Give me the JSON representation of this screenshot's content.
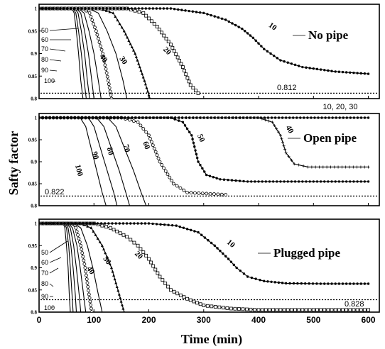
{
  "chart_data": {
    "type": "line",
    "xlabel": "Time (min)",
    "ylabel": "Safty factor",
    "xlim": [
      0,
      620
    ],
    "x_ticks": [
      0,
      100,
      200,
      300,
      400,
      500,
      600
    ],
    "ylim": [
      0.8,
      1.0
    ],
    "y_ticks": [
      "1",
      "0.95",
      "0.9",
      "0.85",
      "0.8"
    ],
    "panels": [
      {
        "title": "No pipe",
        "threshold": {
          "label": "0.812",
          "value": 0.812
        },
        "series_labels": [
          "100",
          "90",
          "80",
          "70",
          "60",
          "50",
          "40",
          "30",
          "20",
          "10"
        ],
        "series": [
          {
            "name": "100",
            "marker": "line",
            "x": [
              0,
              60,
              64,
              68,
              72,
              76,
              80
            ],
            "y": [
              1.0,
              1.0,
              0.99,
              0.95,
              0.9,
              0.84,
              0.8
            ]
          },
          {
            "name": "90",
            "marker": "line",
            "x": [
              0,
              62,
              67,
              72,
              77,
              82,
              86
            ],
            "y": [
              1.0,
              1.0,
              0.99,
              0.95,
              0.9,
              0.84,
              0.8
            ]
          },
          {
            "name": "80",
            "marker": "line",
            "x": [
              0,
              65,
              71,
              77,
              83,
              88,
              92
            ],
            "y": [
              1.0,
              1.0,
              0.99,
              0.95,
              0.9,
              0.84,
              0.8
            ]
          },
          {
            "name": "70",
            "marker": "line",
            "x": [
              0,
              68,
              76,
              83,
              90,
              96,
              100
            ],
            "y": [
              1.0,
              1.0,
              0.99,
              0.95,
              0.9,
              0.84,
              0.8
            ]
          },
          {
            "name": "60",
            "marker": "line",
            "x": [
              0,
              72,
              82,
              91,
              100,
              108,
              113
            ],
            "y": [
              1.0,
              1.0,
              0.99,
              0.95,
              0.9,
              0.84,
              0.8
            ]
          },
          {
            "name": "50",
            "marker": "circle",
            "x": [
              0,
              80,
              92,
              104,
              116,
              126,
              132
            ],
            "y": [
              1.0,
              1.0,
              0.99,
              0.95,
              0.9,
              0.84,
              0.8
            ]
          },
          {
            "name": "40",
            "marker": "line",
            "x": [
              0,
              90,
              108,
              124,
              140,
              153,
              160
            ],
            "y": [
              1.0,
              1.0,
              0.99,
              0.95,
              0.9,
              0.84,
              0.8
            ]
          },
          {
            "name": "30",
            "marker": "triangle",
            "x": [
              0,
              110,
              135,
              155,
              175,
              192,
              202
            ],
            "y": [
              1.0,
              1.0,
              0.99,
              0.95,
              0.9,
              0.84,
              0.8
            ]
          },
          {
            "name": "20",
            "marker": "square",
            "x": [
              0,
              160,
              190,
              215,
              240,
              262,
              276,
              290
            ],
            "y": [
              1.0,
              1.0,
              0.99,
              0.96,
              0.92,
              0.87,
              0.83,
              0.812
            ]
          },
          {
            "name": "10",
            "marker": "dot",
            "x": [
              0,
              240,
              300,
              340,
              370,
              390,
              410,
              440,
              480,
              540,
              600
            ],
            "y": [
              1.0,
              1.0,
              0.99,
              0.975,
              0.955,
              0.935,
              0.91,
              0.885,
              0.87,
              0.86,
              0.855
            ]
          }
        ]
      },
      {
        "title": "Open pipe",
        "threshold": {
          "label": "0.822",
          "value": 0.822
        },
        "series_labels": [
          "100",
          "90",
          "80",
          "70",
          "60",
          "50",
          "40",
          "10, 20, 30"
        ],
        "series": [
          {
            "name": "100",
            "marker": "line",
            "x": [
              0,
              75,
              85,
              95,
              105,
              115,
              122
            ],
            "y": [
              1.0,
              1.0,
              0.98,
              0.93,
              0.88,
              0.83,
              0.8
            ]
          },
          {
            "name": "90",
            "marker": "line",
            "x": [
              0,
              90,
              100,
              112,
              124,
              136,
              142
            ],
            "y": [
              1.0,
              1.0,
              0.98,
              0.93,
              0.88,
              0.83,
              0.8
            ]
          },
          {
            "name": "80",
            "marker": "line",
            "x": [
              0,
              105,
              118,
              132,
              146,
              158,
              165
            ],
            "y": [
              1.0,
              1.0,
              0.98,
              0.93,
              0.88,
              0.83,
              0.8
            ]
          },
          {
            "name": "70",
            "marker": "line",
            "x": [
              0,
              125,
              140,
              156,
              172,
              186,
              195
            ],
            "y": [
              1.0,
              1.0,
              0.98,
              0.93,
              0.88,
              0.83,
              0.8
            ]
          },
          {
            "name": "60",
            "marker": "circle",
            "x": [
              0,
              150,
              180,
              200,
              220,
              245,
              270,
              340
            ],
            "y": [
              1.0,
              1.0,
              0.99,
              0.96,
              0.9,
              0.85,
              0.83,
              0.825
            ]
          },
          {
            "name": "50",
            "marker": "dot",
            "x": [
              0,
              240,
              262,
              278,
              290,
              305,
              330,
              380,
              600
            ],
            "y": [
              1.0,
              1.0,
              0.99,
              0.96,
              0.9,
              0.87,
              0.86,
              0.855,
              0.855
            ]
          },
          {
            "name": "40",
            "marker": "plus",
            "x": [
              0,
              400,
              425,
              440,
              450,
              465,
              490,
              600
            ],
            "y": [
              1.0,
              1.0,
              0.99,
              0.96,
              0.92,
              0.895,
              0.888,
              0.888
            ]
          },
          {
            "name": "10, 20, 30",
            "marker": "dot",
            "x": [
              0,
              150,
              300,
              600
            ],
            "y": [
              1.0,
              1.0,
              1.0,
              1.0
            ]
          }
        ]
      },
      {
        "title": "Plugged pipe",
        "threshold": {
          "label": "0.828",
          "value": 0.828
        },
        "series_labels": [
          "100",
          "90",
          "80",
          "70",
          "60",
          "50",
          "40",
          "30",
          "20",
          "10"
        ],
        "series": [
          {
            "name": "100",
            "marker": "line",
            "x": [
              0,
              44,
              47,
              50,
              53,
              55,
              57
            ],
            "y": [
              1.0,
              1.0,
              0.99,
              0.95,
              0.9,
              0.84,
              0.8
            ]
          },
          {
            "name": "90",
            "marker": "line",
            "x": [
              0,
              46,
              50,
              54,
              57,
              60,
              62
            ],
            "y": [
              1.0,
              1.0,
              0.99,
              0.95,
              0.9,
              0.84,
              0.8
            ]
          },
          {
            "name": "80",
            "marker": "line",
            "x": [
              0,
              48,
              53,
              58,
              62,
              66,
              68
            ],
            "y": [
              1.0,
              1.0,
              0.99,
              0.95,
              0.9,
              0.84,
              0.8
            ]
          },
          {
            "name": "70",
            "marker": "line",
            "x": [
              0,
              50,
              57,
              63,
              68,
              73,
              76
            ],
            "y": [
              1.0,
              1.0,
              0.99,
              0.95,
              0.9,
              0.84,
              0.8
            ]
          },
          {
            "name": "60",
            "marker": "line",
            "x": [
              0,
              53,
              61,
              69,
              75,
              81,
              85
            ],
            "y": [
              1.0,
              1.0,
              0.99,
              0.95,
              0.9,
              0.84,
              0.8
            ]
          },
          {
            "name": "50",
            "marker": "circle",
            "x": [
              0,
              58,
              67,
              76,
              84,
              91,
              96
            ],
            "y": [
              1.0,
              1.0,
              0.99,
              0.95,
              0.9,
              0.84,
              0.8
            ]
          },
          {
            "name": "40",
            "marker": "line",
            "x": [
              0,
              63,
              76,
              88,
              98,
              108,
              115
            ],
            "y": [
              1.0,
              1.0,
              0.99,
              0.95,
              0.9,
              0.84,
              0.8
            ]
          },
          {
            "name": "30",
            "marker": "triangle",
            "x": [
              0,
              75,
              95,
              115,
              132,
              146,
              155
            ],
            "y": [
              1.0,
              1.0,
              0.99,
              0.95,
              0.9,
              0.84,
              0.8
            ]
          },
          {
            "name": "20",
            "marker": "square",
            "x": [
              0,
              100,
              130,
              160,
              180,
              200,
              220,
              240,
              270,
              300,
              350,
              400,
              600
            ],
            "y": [
              1.0,
              1.0,
              0.99,
              0.97,
              0.95,
              0.92,
              0.88,
              0.85,
              0.83,
              0.815,
              0.808,
              0.805,
              0.805
            ]
          },
          {
            "name": "10",
            "marker": "dot",
            "x": [
              0,
              200,
              250,
              290,
              320,
              345,
              360,
              380,
              410,
              450,
              520,
              600
            ],
            "y": [
              1.0,
              1.0,
              0.995,
              0.98,
              0.95,
              0.92,
              0.9,
              0.88,
              0.87,
              0.865,
              0.864,
              0.864
            ]
          }
        ]
      }
    ]
  }
}
